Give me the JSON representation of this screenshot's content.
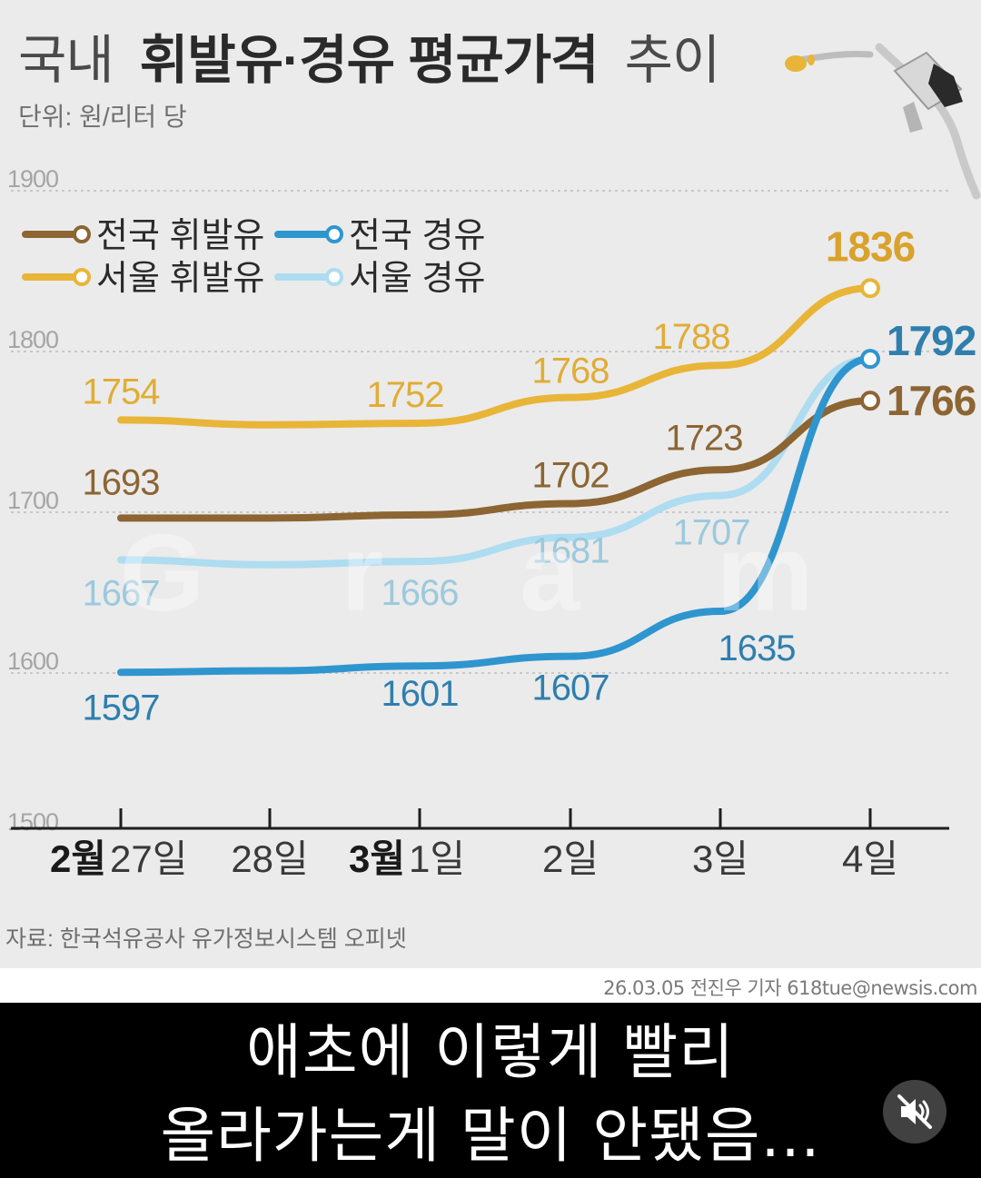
{
  "chart": {
    "title_light": "국내",
    "title_bold": "휘발유·경유 평균가격",
    "title_tail": "추이",
    "unit": "단위: 원/리터 당",
    "source": "자료: 한국석유공사 유가정보시스템 오피넷",
    "credit": "26.03.05 전진우 기자 618tue@newsis.com",
    "watermark": "Gram"
  },
  "colors": {
    "national_gasoline": "#8c6533",
    "seoul_gasoline": "#e8b538",
    "national_diesel": "#2f95cf",
    "seoul_diesel": "#aedcf0",
    "axis": "#1e1e1e",
    "grid": "#bdbdbd",
    "tick_label": "#a5a5a5"
  },
  "chart_data": {
    "type": "line",
    "title": "국내 휘발유·경유 평균가격 추이",
    "ylabel": "단위: 원/리터 당",
    "ylim": [
      1500,
      1900
    ],
    "yticks": [
      1500,
      1600,
      1700,
      1800,
      1900
    ],
    "grid": true,
    "legend_position": "top-left",
    "x": [
      "2월 27일",
      "28일",
      "3월 1일",
      "2일",
      "3일",
      "4일"
    ],
    "x_tick_labels": [
      {
        "month": "2월",
        "day": "27일"
      },
      {
        "month": "",
        "day": "28일"
      },
      {
        "month": "3월",
        "day": "1일"
      },
      {
        "month": "",
        "day": "2일"
      },
      {
        "month": "",
        "day": "3일"
      },
      {
        "month": "",
        "day": "4일"
      }
    ],
    "series": [
      {
        "name": "전국 휘발유",
        "values": [
          1693,
          1693,
          1695,
          1702,
          1723,
          1766
        ],
        "labels": [
          "1693",
          "",
          "",
          "1702",
          "1723",
          "1766"
        ]
      },
      {
        "name": "전국 경유",
        "values": [
          1597,
          1598,
          1601,
          1607,
          1635,
          1792
        ],
        "labels": [
          "1597",
          "",
          "1601",
          "1607",
          "1635",
          "1792"
        ]
      },
      {
        "name": "서울 휘발유",
        "values": [
          1754,
          1751,
          1752,
          1768,
          1788,
          1836
        ],
        "labels": [
          "1754",
          "",
          "1752",
          "1768",
          "1788",
          "1836"
        ]
      },
      {
        "name": "서울 경유",
        "values": [
          1667,
          1664,
          1666,
          1681,
          1707,
          1792
        ],
        "labels": [
          "1667",
          "",
          "1666",
          "1681",
          "1707",
          ""
        ]
      }
    ]
  },
  "caption": {
    "line1": "애초에 이렇게 빨리",
    "line2": "올라가는게 말이 안됐음..."
  },
  "controls": {
    "mute_icon": "speaker-muted-icon"
  }
}
